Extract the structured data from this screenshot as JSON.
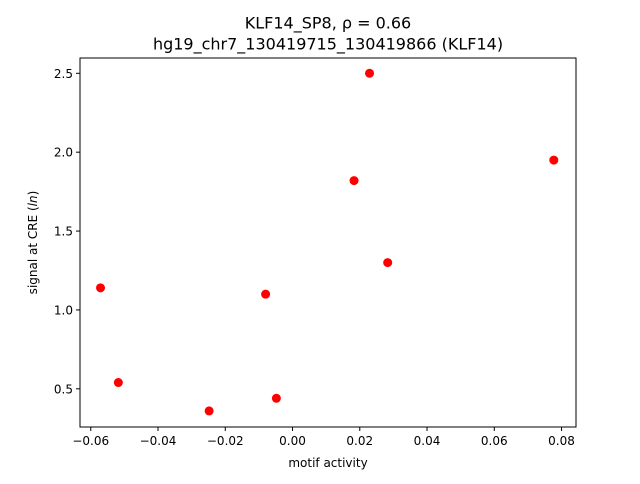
{
  "chart_data": {
    "type": "scatter",
    "title": "KLF14_SP8, ρ = 0.66",
    "subtitle": "hg19_chr7_130419715_130419866 (KLF14)",
    "xlabel": "motif activity",
    "ylabel": "signal at CRE (ln)",
    "xlim": [
      -0.0632,
      0.0843
    ],
    "ylim": [
      0.258,
      2.597
    ],
    "x_ticks": [
      -0.06,
      -0.04,
      -0.02,
      0.0,
      0.02,
      0.04,
      0.06,
      0.08
    ],
    "x_tick_labels": [
      "−0.06",
      "−0.04",
      "−0.02",
      "0.00",
      "0.02",
      "0.04",
      "0.06",
      "0.08"
    ],
    "y_ticks": [
      0.5,
      1.0,
      1.5,
      2.0,
      2.5
    ],
    "y_tick_labels": [
      "0.5",
      "1.0",
      "1.5",
      "2.0",
      "2.5"
    ],
    "grid": false,
    "legend": "none",
    "marker_color": "#ff0000",
    "points": [
      {
        "x": -0.0571,
        "y": 1.14
      },
      {
        "x": -0.0518,
        "y": 0.54
      },
      {
        "x": -0.0248,
        "y": 0.36
      },
      {
        "x": -0.008,
        "y": 1.1
      },
      {
        "x": -0.0048,
        "y": 0.44
      },
      {
        "x": 0.0183,
        "y": 1.82
      },
      {
        "x": 0.0229,
        "y": 2.5
      },
      {
        "x": 0.0283,
        "y": 1.3
      },
      {
        "x": 0.0777,
        "y": 1.95
      }
    ]
  }
}
